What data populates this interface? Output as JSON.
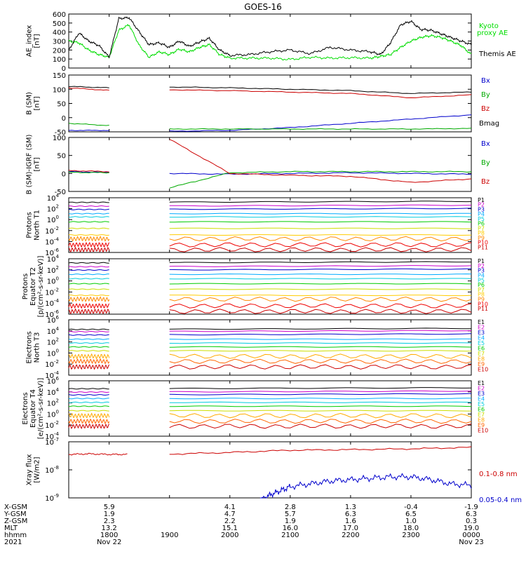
{
  "title": "GOES-16",
  "chart_data": [
    {
      "type": "line",
      "ylabel": [
        "AE_index",
        "[nT]"
      ],
      "ylim": [
        0,
        600
      ],
      "yticks": [
        "0",
        "100",
        "200",
        "300",
        "400",
        "500",
        "600"
      ],
      "series": [
        {
          "name": "Kyoto proxy AE",
          "color": "#00dd00",
          "x": [
            17.33,
            17.5,
            17.66,
            17.83,
            18.0,
            18.16,
            18.33,
            18.5,
            18.66,
            18.83,
            19.0,
            19.16,
            19.33,
            19.5,
            19.66,
            19.83,
            20.0,
            20.33,
            20.66,
            21.0,
            21.33,
            21.66,
            22.0,
            22.33,
            22.5,
            22.66,
            22.83,
            23.0,
            23.16,
            23.33,
            23.5,
            23.66,
            23.83,
            24.0
          ],
          "values": [
            300,
            280,
            200,
            150,
            120,
            420,
            480,
            250,
            120,
            180,
            150,
            210,
            180,
            230,
            260,
            150,
            110,
            110,
            110,
            95,
            120,
            110,
            115,
            110,
            130,
            150,
            230,
            300,
            340,
            360,
            340,
            300,
            250,
            150
          ]
        },
        {
          "name": "Themis AE",
          "color": "#000000",
          "x": [
            17.33,
            17.5,
            17.66,
            17.83,
            18.0,
            18.16,
            18.33,
            18.5,
            18.66,
            18.83,
            19.0,
            19.16,
            19.33,
            19.5,
            19.66,
            19.83,
            20.0,
            20.33,
            20.66,
            21.0,
            21.33,
            21.66,
            22.0,
            22.33,
            22.5,
            22.66,
            22.83,
            23.0,
            23.16,
            23.33,
            23.5,
            23.66,
            23.83,
            24.0
          ],
          "values": [
            200,
            390,
            300,
            250,
            120,
            550,
            560,
            400,
            260,
            280,
            230,
            300,
            240,
            290,
            330,
            200,
            140,
            150,
            180,
            200,
            160,
            230,
            200,
            180,
            150,
            280,
            480,
            520,
            430,
            420,
            380,
            340,
            300,
            260
          ]
        }
      ]
    },
    {
      "type": "line",
      "ylabel": [
        "B (SM)",
        "[nT]"
      ],
      "ylim": [
        -50,
        150
      ],
      "yticks": [
        "-50",
        "0",
        "50",
        "100",
        "150"
      ],
      "series": [
        {
          "name": "Bx",
          "color": "#0000cc",
          "x": [
            17.33,
            18.0,
            18.5,
            19.0,
            20.0,
            21.0,
            22.0,
            23.0,
            24.0
          ],
          "values": [
            -45,
            -45,
            null,
            -48,
            -45,
            -35,
            -20,
            -5,
            10
          ]
        },
        {
          "name": "By",
          "color": "#00aa00",
          "x": [
            17.33,
            18.0,
            18.5,
            19.0,
            20.0,
            21.0,
            22.0,
            23.0,
            24.0
          ],
          "values": [
            -20,
            -28,
            null,
            -40,
            -40,
            -40,
            -40,
            -40,
            -38
          ]
        },
        {
          "name": "Bz",
          "color": "#cc0000",
          "x": [
            17.33,
            18.0,
            18.5,
            19.0,
            20.0,
            21.0,
            22.0,
            23.0,
            24.0
          ],
          "values": [
            105,
            96,
            null,
            98,
            95,
            90,
            85,
            70,
            80
          ]
        },
        {
          "name": "Bmag",
          "color": "#000000",
          "x": [
            17.33,
            18.0,
            18.5,
            19.0,
            20.0,
            21.0,
            22.0,
            23.0,
            24.0
          ],
          "values": [
            110,
            105,
            null,
            108,
            105,
            100,
            95,
            85,
            90
          ]
        }
      ]
    },
    {
      "type": "line",
      "ylabel": [
        "B (SM)-IGRF (SM)",
        "[nT]"
      ],
      "ylim": [
        -50,
        100
      ],
      "yticks": [
        "-50",
        "0",
        "50",
        "100"
      ],
      "series": [
        {
          "name": "Bx",
          "color": "#0000cc",
          "x": [
            17.33,
            18.0,
            18.5,
            19.0,
            20.0,
            21.0,
            22.0,
            23.0,
            24.0
          ],
          "values": [
            5,
            3,
            null,
            0,
            -2,
            0,
            2,
            0,
            -2
          ]
        },
        {
          "name": "By",
          "color": "#00aa00",
          "x": [
            17.33,
            18.0,
            18.5,
            19.0,
            20.0,
            21.0,
            22.0,
            23.0,
            24.0
          ],
          "values": [
            3,
            2,
            null,
            -40,
            2,
            5,
            5,
            5,
            5
          ]
        },
        {
          "name": "Bz",
          "color": "#cc0000",
          "x": [
            17.33,
            18.0,
            18.5,
            19.0,
            20.0,
            21.0,
            22.0,
            23.0,
            24.0
          ],
          "values": [
            8,
            5,
            null,
            95,
            0,
            -5,
            -8,
            -25,
            -15
          ]
        }
      ]
    },
    {
      "type": "line",
      "ylabel": [
        "Protons",
        "North T1"
      ],
      "yscale": "log",
      "ylim_exp": [
        -6,
        4
      ],
      "yticks": [
        {
          "b": "10",
          "e": "4"
        },
        {
          "b": "10",
          "e": "2"
        },
        {
          "b": "10",
          "e": "0"
        },
        {
          "b": "10",
          "e": "-2"
        },
        {
          "b": "10",
          "e": "-4"
        },
        {
          "b": "10",
          "e": "-6"
        }
      ],
      "channels": [
        "P1",
        "P2",
        "P3",
        "P4",
        "P5",
        "P6",
        "P7",
        "P8",
        "P9",
        "P10",
        "P11"
      ],
      "log_levels": [
        3.2,
        2.5,
        1.9,
        1.1,
        0.5,
        -0.4,
        -1.6,
        -2.8,
        -3.5,
        -4.6,
        -5.5
      ]
    },
    {
      "type": "line",
      "ylabel": [
        "Protons",
        "Equator T2",
        "[p/(cm²-s-sr-keV)]"
      ],
      "yscale": "log",
      "ylim_exp": [
        -6,
        4
      ],
      "yticks": [
        {
          "b": "10",
          "e": "4"
        },
        {
          "b": "10",
          "e": "2"
        },
        {
          "b": "10",
          "e": "0"
        },
        {
          "b": "10",
          "e": "-2"
        },
        {
          "b": "10",
          "e": "-4"
        },
        {
          "b": "10",
          "e": "-6"
        }
      ],
      "channels": [
        "P1",
        "P2",
        "P3",
        "P4",
        "P5",
        "P6",
        "P7",
        "P8",
        "P9",
        "P10",
        "P11"
      ],
      "log_levels": [
        3.3,
        2.6,
        2.0,
        1.2,
        0.4,
        -0.5,
        -1.5,
        -2.6,
        -3.3,
        -4.5,
        -5.5
      ]
    },
    {
      "type": "line",
      "ylabel": [
        "Electrons",
        "North T3"
      ],
      "yscale": "log",
      "ylim_exp": [
        -4,
        6
      ],
      "yticks": [
        {
          "b": "10",
          "e": "6"
        },
        {
          "b": "10",
          "e": "4"
        },
        {
          "b": "10",
          "e": "2"
        },
        {
          "b": "10",
          "e": "0"
        },
        {
          "b": "10",
          "e": "-2"
        },
        {
          "b": "10",
          "e": "-4"
        }
      ],
      "channels": [
        "E1",
        "E2",
        "E3",
        "E4",
        "E5",
        "E6",
        "E7",
        "E8",
        "E9",
        "E10"
      ],
      "log_levels": [
        4.3,
        3.9,
        3.3,
        2.5,
        1.8,
        1.1,
        0.4,
        -0.6,
        -1.5,
        -2.5
      ]
    },
    {
      "type": "line",
      "ylabel": [
        "Electrons",
        "Equator T4",
        "[e/(cm²-s-sr-keV)]"
      ],
      "yscale": "log",
      "ylim_exp": [
        -4,
        6
      ],
      "yticks": [
        {
          "b": "10",
          "e": "6"
        },
        {
          "b": "10",
          "e": "4"
        },
        {
          "b": "10",
          "e": "2"
        },
        {
          "b": "10",
          "e": "0"
        },
        {
          "b": "10",
          "e": "-2"
        },
        {
          "b": "10",
          "e": "-4"
        }
      ],
      "channels": [
        "E1",
        "E2",
        "E3",
        "E4",
        "E5",
        "E6",
        "E7",
        "E8",
        "E9",
        "E10"
      ],
      "log_levels": [
        4.6,
        4.0,
        3.5,
        2.8,
        2.1,
        1.4,
        0.6,
        -0.3,
        -1.3,
        -2.2
      ]
    },
    {
      "type": "line",
      "ylabel": [
        "Xray flux",
        "[W/m2]"
      ],
      "yscale": "log",
      "ylim_exp": [
        -9,
        -7
      ],
      "yticks": [
        {
          "b": "10",
          "e": "-7"
        },
        {
          "b": "10",
          "e": "-8"
        },
        {
          "b": "10",
          "e": "-9"
        }
      ],
      "series": [
        {
          "name": "0.1-0.8 nm",
          "color": "#cc0000",
          "x": [
            17.33,
            17.66,
            18.0,
            18.3,
            18.5,
            19.0,
            20.0,
            21.0,
            22.0,
            23.0,
            24.0
          ],
          "log_values": [
            -7.45,
            -7.43,
            -7.45,
            -7.45,
            null,
            -7.44,
            -7.38,
            -7.3,
            -7.28,
            -7.25,
            -7.2
          ]
        },
        {
          "name": "0.05-0.4 nm",
          "color": "#0000cc",
          "x": [
            20.5,
            20.66,
            20.83,
            21.0,
            21.33,
            21.66,
            22.0,
            22.33,
            22.66,
            23.0,
            23.33,
            23.66,
            24.0
          ],
          "log_values": [
            -9.1,
            -8.9,
            -8.75,
            -8.6,
            -8.5,
            -8.4,
            -8.35,
            -8.3,
            -8.25,
            -8.25,
            -8.35,
            -8.5,
            -8.55
          ]
        }
      ]
    }
  ],
  "xaxis": {
    "tick_hours": [
      18,
      19,
      20,
      21,
      22,
      23,
      24
    ],
    "xlim": [
      17.33,
      24.0
    ],
    "rows": [
      {
        "label": "X-GSM",
        "values": [
          "5.9",
          "",
          "4.1",
          "2.8",
          "1.3",
          "-0.4",
          "-1.9"
        ]
      },
      {
        "label": "Y-GSM",
        "values": [
          "1.9",
          "",
          "4.7",
          "5.7",
          "6.3",
          "6.5",
          "6.3"
        ]
      },
      {
        "label": "Z-GSM",
        "values": [
          "2.3",
          "",
          "2.2",
          "1.9",
          "1.6",
          "1.0",
          "0.3"
        ]
      },
      {
        "label": "MLT",
        "values": [
          "13.2",
          "",
          "15.1",
          "16.0",
          "17.0",
          "18.0",
          "19.0"
        ]
      },
      {
        "label": "hhmm",
        "values": [
          "1800",
          "1900",
          "2000",
          "2100",
          "2200",
          "2300",
          "0000"
        ]
      },
      {
        "label": "2021",
        "values": [
          "Nov 22",
          "",
          "",
          "",
          "",
          "",
          "Nov 23"
        ]
      }
    ]
  },
  "legend": {
    "kyoto": "Kyoto",
    "proxy_ae": "proxy AE",
    "themis": "Themis AE",
    "bx": "Bx",
    "by": "By",
    "bz": "Bz",
    "bmag": "Bmag",
    "xray1": "0.1-0.8 nm",
    "xray2": "0.05-0.4 nm"
  },
  "channel_colors": {
    "P": [
      "#000000",
      "#cc00cc",
      "#0000cc",
      "#00aaff",
      "#00ccdd",
      "#00cc00",
      "#ccdd00",
      "#ffcc00",
      "#ff8800",
      "#ee0000",
      "#cc0000"
    ],
    "E": [
      "#000000",
      "#cc00cc",
      "#0000cc",
      "#00aaff",
      "#00ccdd",
      "#00cc00",
      "#ccdd00",
      "#ffaa00",
      "#ff6600",
      "#cc0000"
    ]
  }
}
